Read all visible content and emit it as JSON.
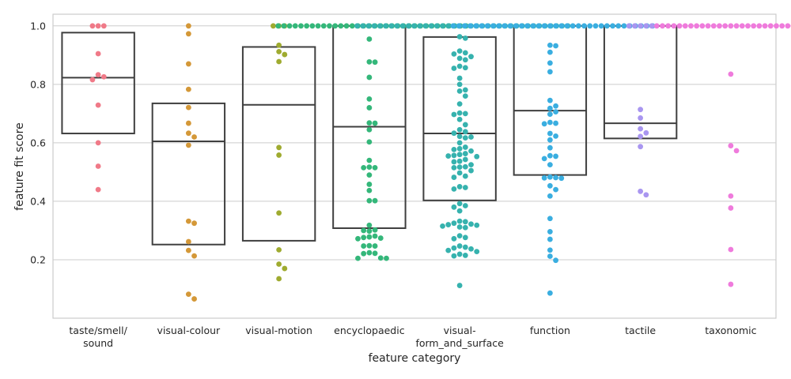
{
  "chart_data": {
    "type": "box_swarm",
    "xlabel": "feature category",
    "ylabel": "feature fit score",
    "ylim": [
      0,
      1.04
    ],
    "yticks": [
      0.2,
      0.4,
      0.6,
      0.8,
      1.0
    ],
    "ytick_labels": [
      "0.2",
      "0.4",
      "0.6",
      "0.8",
      "1.0"
    ],
    "grid": true,
    "categories": [
      {
        "label_lines": [
          "taste/smell/",
          "sound"
        ],
        "color": "#f07a88",
        "box": {
          "q1": 0.632,
          "median": 0.823,
          "q3": 0.977
        },
        "points": [
          1.0,
          1.0,
          1.0,
          0.905,
          0.833,
          0.826,
          0.816,
          0.729,
          0.6,
          0.52,
          0.44
        ]
      },
      {
        "label_lines": [
          "visual-colour"
        ],
        "color": "#d49838",
        "box": {
          "q1": 0.252,
          "median": 0.605,
          "q3": 0.735
        },
        "points": [
          1.0,
          0.973,
          0.87,
          0.783,
          0.721,
          0.667,
          0.633,
          0.62,
          0.592,
          0.332,
          0.325,
          0.262,
          0.232,
          0.213,
          0.082,
          0.066
        ]
      },
      {
        "label_lines": [
          "visual-motion"
        ],
        "color": "#9fab30",
        "box": {
          "q1": 0.265,
          "median": 0.73,
          "q3": 0.928
        },
        "points": [
          1.0,
          1.0,
          1.0,
          0.934,
          0.912,
          0.902,
          0.878,
          0.584,
          0.558,
          0.36,
          0.234,
          0.185,
          0.17,
          0.135
        ]
      },
      {
        "label_lines": [
          "encyclopaedic"
        ],
        "color": "#34b77a",
        "box": {
          "q1": 0.308,
          "median": 0.655,
          "q3": 1.0
        },
        "points": [
          1.0,
          1.0,
          1.0,
          1.0,
          1.0,
          1.0,
          1.0,
          1.0,
          1.0,
          1.0,
          1.0,
          1.0,
          1.0,
          1.0,
          1.0,
          1.0,
          1.0,
          1.0,
          1.0,
          1.0,
          1.0,
          1.0,
          1.0,
          1.0,
          1.0,
          1.0,
          1.0,
          1.0,
          1.0,
          1.0,
          1.0,
          1.0,
          1.0,
          1.0,
          0.955,
          0.877,
          0.876,
          0.824,
          0.75,
          0.72,
          0.668,
          0.667,
          0.645,
          0.603,
          0.54,
          0.517,
          0.515,
          0.515,
          0.49,
          0.458,
          0.437,
          0.402,
          0.402,
          0.318,
          0.302,
          0.3,
          0.298,
          0.281,
          0.278,
          0.276,
          0.274,
          0.272,
          0.248,
          0.247,
          0.247,
          0.224,
          0.222,
          0.221,
          0.206,
          0.205,
          0.205
        ]
      },
      {
        "label_lines": [
          "visual-",
          "form_and_surface"
        ],
        "color": "#36b2ae",
        "box": {
          "q1": 0.403,
          "median": 0.632,
          "q3": 0.962
        },
        "points": [
          1.0,
          1.0,
          1.0,
          1.0,
          1.0,
          1.0,
          1.0,
          1.0,
          1.0,
          1.0,
          1.0,
          1.0,
          1.0,
          1.0,
          1.0,
          1.0,
          1.0,
          1.0,
          1.0,
          1.0,
          1.0,
          1.0,
          1.0,
          1.0,
          1.0,
          1.0,
          1.0,
          1.0,
          1.0,
          1.0,
          1.0,
          1.0,
          1.0,
          1.0,
          1.0,
          1.0,
          1.0,
          1.0,
          0.963,
          0.958,
          0.914,
          0.908,
          0.904,
          0.895,
          0.889,
          0.884,
          0.862,
          0.857,
          0.855,
          0.821,
          0.8,
          0.781,
          0.777,
          0.76,
          0.733,
          0.702,
          0.7,
          0.697,
          0.68,
          0.662,
          0.645,
          0.638,
          0.633,
          0.622,
          0.62,
          0.617,
          0.6,
          0.585,
          0.58,
          0.577,
          0.572,
          0.563,
          0.56,
          0.557,
          0.555,
          0.553,
          0.543,
          0.537,
          0.535,
          0.525,
          0.518,
          0.517,
          0.515,
          0.505,
          0.497,
          0.486,
          0.482,
          0.45,
          0.447,
          0.442,
          0.392,
          0.385,
          0.38,
          0.367,
          0.332,
          0.33,
          0.325,
          0.322,
          0.32,
          0.318,
          0.315,
          0.312,
          0.31,
          0.282,
          0.276,
          0.272,
          0.247,
          0.243,
          0.24,
          0.237,
          0.232,
          0.228,
          0.219,
          0.215,
          0.213,
          0.112
        ]
      },
      {
        "label_lines": [
          "function"
        ],
        "color": "#3aaee0",
        "box": {
          "q1": 0.49,
          "median": 0.71,
          "q3": 1.0
        },
        "points": [
          1.0,
          1.0,
          1.0,
          1.0,
          1.0,
          1.0,
          1.0,
          1.0,
          1.0,
          1.0,
          1.0,
          1.0,
          1.0,
          1.0,
          1.0,
          1.0,
          1.0,
          1.0,
          1.0,
          1.0,
          1.0,
          1.0,
          1.0,
          1.0,
          1.0,
          1.0,
          1.0,
          1.0,
          1.0,
          1.0,
          1.0,
          1.0,
          1.0,
          1.0,
          1.0,
          1.0,
          0.934,
          0.932,
          0.91,
          0.873,
          0.843,
          0.745,
          0.726,
          0.718,
          0.706,
          0.698,
          0.67,
          0.667,
          0.665,
          0.632,
          0.623,
          0.61,
          0.583,
          0.556,
          0.554,
          0.546,
          0.525,
          0.483,
          0.481,
          0.48,
          0.479,
          0.453,
          0.44,
          0.418,
          0.341,
          0.296,
          0.27,
          0.233,
          0.212,
          0.198,
          0.086
        ]
      },
      {
        "label_lines": [
          "tactile"
        ],
        "color": "#a996f0",
        "box": {
          "q1": 0.615,
          "median": 0.667,
          "q3": 1.0
        },
        "points": [
          1.0,
          1.0,
          1.0,
          1.0,
          1.0,
          0.714,
          0.685,
          0.648,
          0.634,
          0.622,
          0.587,
          0.434,
          0.422
        ]
      },
      {
        "label_lines": [
          "taxonomic"
        ],
        "color": "#ef7bdc",
        "box": null,
        "points": [
          1.0,
          1.0,
          1.0,
          1.0,
          1.0,
          1.0,
          1.0,
          1.0,
          1.0,
          1.0,
          1.0,
          1.0,
          1.0,
          1.0,
          1.0,
          1.0,
          1.0,
          1.0,
          1.0,
          1.0,
          1.0,
          1.0,
          1.0,
          1.0,
          1.0,
          1.0,
          1.0,
          1.0,
          0.835,
          0.59,
          0.573,
          0.418,
          0.377,
          0.235,
          0.116
        ]
      }
    ]
  }
}
